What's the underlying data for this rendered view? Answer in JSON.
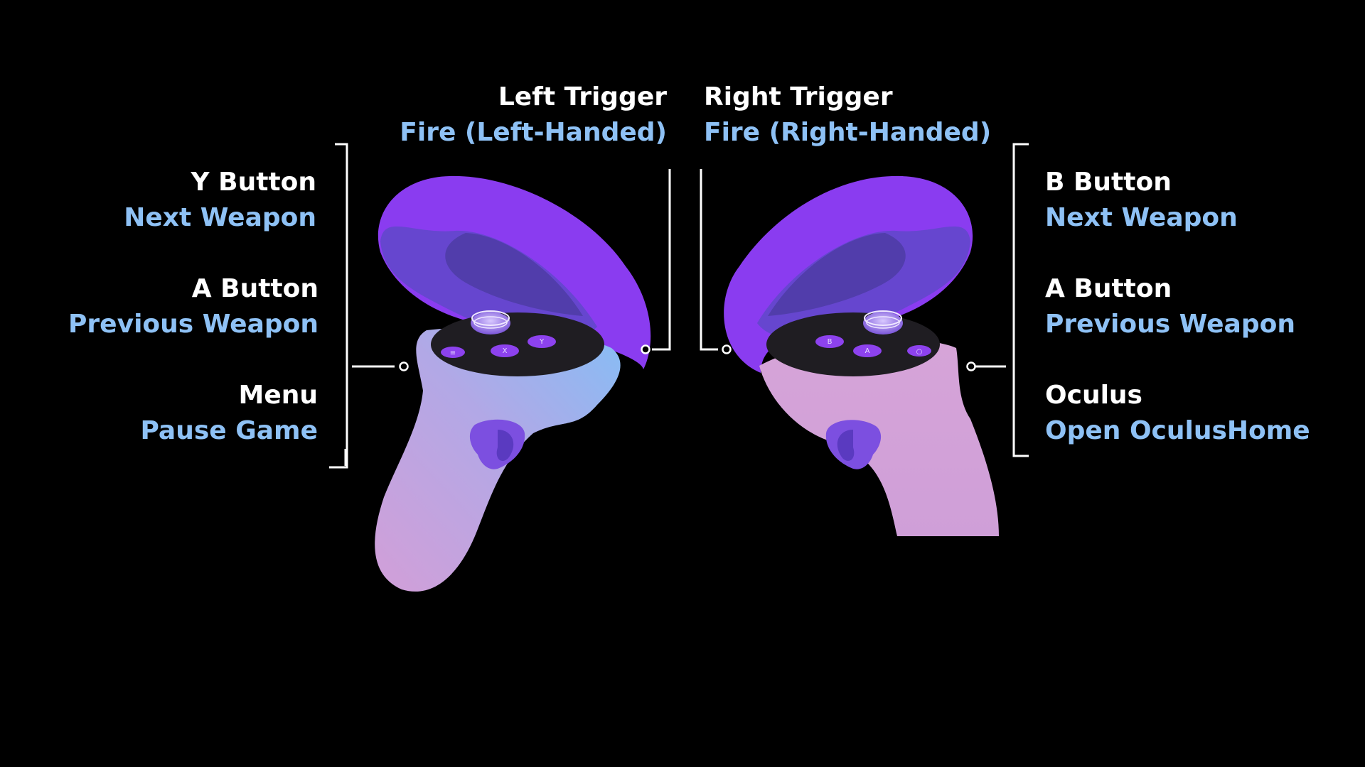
{
  "colors": {
    "background": "#000000",
    "button_name": "#ffffff",
    "action": "#8ec1f5",
    "ring": "#8a3cf0",
    "ring_inner": "#5f48c9",
    "face_plate": "#1f1d22",
    "button": "#8d42ee",
    "grip_top": "#8ec1f5",
    "grip_bottom": "#d29fd8"
  },
  "labels": {
    "y_button": {
      "name": "Y Button",
      "action": "Next Weapon"
    },
    "a_button_left": {
      "name": "A Button",
      "action": "Previous Weapon"
    },
    "menu": {
      "name": "Menu",
      "action": "Pause Game"
    },
    "left_trigger": {
      "name": "Left Trigger",
      "action": "Fire (Left-Handed)"
    },
    "right_trigger": {
      "name": "Right Trigger",
      "action": "Fire (Right-Handed)"
    },
    "b_button": {
      "name": "B Button",
      "action": "Next Weapon"
    },
    "a_button_right": {
      "name": "A Button",
      "action": "Previous Weapon"
    },
    "oculus": {
      "name": "Oculus",
      "action": "Open OculusHome"
    }
  },
  "controllers": {
    "left": {
      "button_glyphs": [
        "≡",
        "X",
        "Y"
      ]
    },
    "right": {
      "button_glyphs": [
        "B",
        "A",
        "○"
      ]
    }
  }
}
